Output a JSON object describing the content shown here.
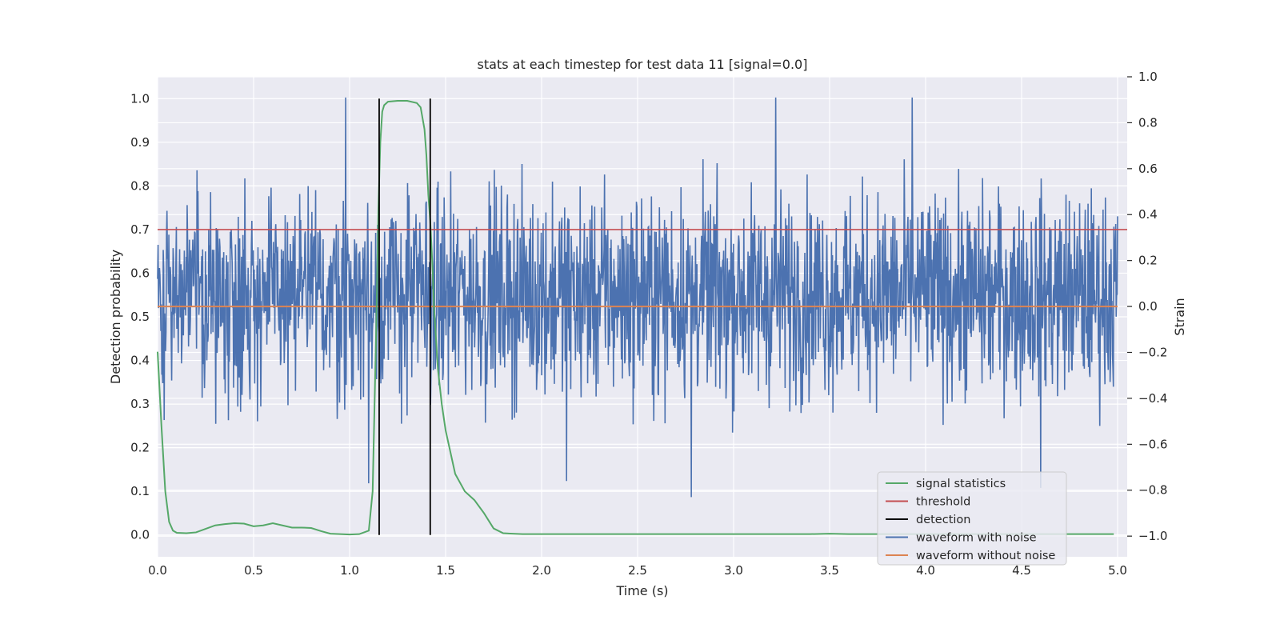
{
  "chart_data": {
    "type": "line",
    "title": "stats at each timestep for test data 11 [signal=0.0]",
    "xlabel": "Time (s)",
    "ylabel_left": "Detection probability",
    "ylabel_right": "Strain",
    "xlim": [
      0.0,
      5.05
    ],
    "ylim_left": [
      -0.05,
      1.05
    ],
    "ylim_right": [
      -1.09,
      1.0
    ],
    "x_ticks": [
      "0.0",
      "0.5",
      "1.0",
      "1.5",
      "2.0",
      "2.5",
      "3.0",
      "3.5",
      "4.0",
      "4.5",
      "5.0"
    ],
    "y_ticks_left": [
      "0.0",
      "0.1",
      "0.2",
      "0.3",
      "0.4",
      "0.5",
      "0.6",
      "0.7",
      "0.8",
      "0.9",
      "1.0"
    ],
    "y_ticks_right": [
      "−1.0",
      "−0.8",
      "−0.6",
      "−0.4",
      "−0.2",
      "0.0",
      "0.2",
      "0.4",
      "0.6",
      "0.8",
      "1.0"
    ],
    "grid": true,
    "legend_position": "lower-right",
    "colors": {
      "signal_statistics": "#55a868",
      "threshold": "#c44e52",
      "detection": "#000000",
      "waveform_with_noise": "#4c72b0",
      "waveform_without_noise": "#dd8452",
      "plot_background": "#eaeaf2",
      "grid": "#ffffff"
    },
    "series": [
      {
        "name": "signal statistics",
        "axis": "left",
        "x": [
          0.0,
          0.02,
          0.04,
          0.06,
          0.08,
          0.1,
          0.15,
          0.2,
          0.25,
          0.3,
          0.35,
          0.4,
          0.45,
          0.5,
          0.55,
          0.6,
          0.65,
          0.7,
          0.75,
          0.8,
          0.85,
          0.9,
          0.95,
          1.0,
          1.05,
          1.1,
          1.12,
          1.14,
          1.15,
          1.16,
          1.17,
          1.18,
          1.2,
          1.25,
          1.3,
          1.35,
          1.37,
          1.39,
          1.4,
          1.41,
          1.42,
          1.43,
          1.44,
          1.46,
          1.48,
          1.5,
          1.55,
          1.6,
          1.65,
          1.7,
          1.75,
          1.8,
          1.9,
          2.0,
          2.5,
          3.0,
          3.4,
          3.5,
          3.6,
          4.0,
          4.5,
          4.98
        ],
        "y": [
          0.42,
          0.25,
          0.1,
          0.03,
          0.01,
          0.005,
          0.004,
          0.006,
          0.014,
          0.022,
          0.025,
          0.027,
          0.026,
          0.02,
          0.022,
          0.027,
          0.022,
          0.017,
          0.017,
          0.016,
          0.009,
          0.003,
          0.002,
          0.001,
          0.002,
          0.01,
          0.1,
          0.5,
          0.75,
          0.9,
          0.97,
          0.985,
          0.993,
          0.995,
          0.995,
          0.99,
          0.98,
          0.93,
          0.87,
          0.78,
          0.72,
          0.63,
          0.52,
          0.38,
          0.3,
          0.24,
          0.14,
          0.1,
          0.08,
          0.05,
          0.015,
          0.004,
          0.002,
          0.002,
          0.002,
          0.002,
          0.002,
          0.003,
          0.002,
          0.002,
          0.002,
          0.002
        ]
      },
      {
        "name": "threshold",
        "axis": "left",
        "x": [
          0.0,
          5.05
        ],
        "y": [
          0.7,
          0.7
        ]
      },
      {
        "name": "detection",
        "axis": "left",
        "x": [
          1.154,
          1.42
        ],
        "y_from": 0.0,
        "y_to": 1.0
      },
      {
        "name": "waveform with noise",
        "axis": "right",
        "samples": 2048,
        "x_range": [
          0.0,
          5.0
        ],
        "typical_range": [
          -0.45,
          0.55
        ],
        "peaks": [
          {
            "x": 0.98,
            "y": 0.91
          },
          {
            "x": 3.22,
            "y": 0.91
          },
          {
            "x": 3.93,
            "y": 0.91
          },
          {
            "x": 2.78,
            "y": -0.83
          },
          {
            "x": 4.6,
            "y": -0.79
          },
          {
            "x": 1.1,
            "y": -0.77
          },
          {
            "x": 2.13,
            "y": -0.76
          }
        ]
      },
      {
        "name": "waveform without noise",
        "axis": "right",
        "x": [
          0.0,
          5.0
        ],
        "y": [
          0.0,
          0.0
        ]
      }
    ]
  }
}
